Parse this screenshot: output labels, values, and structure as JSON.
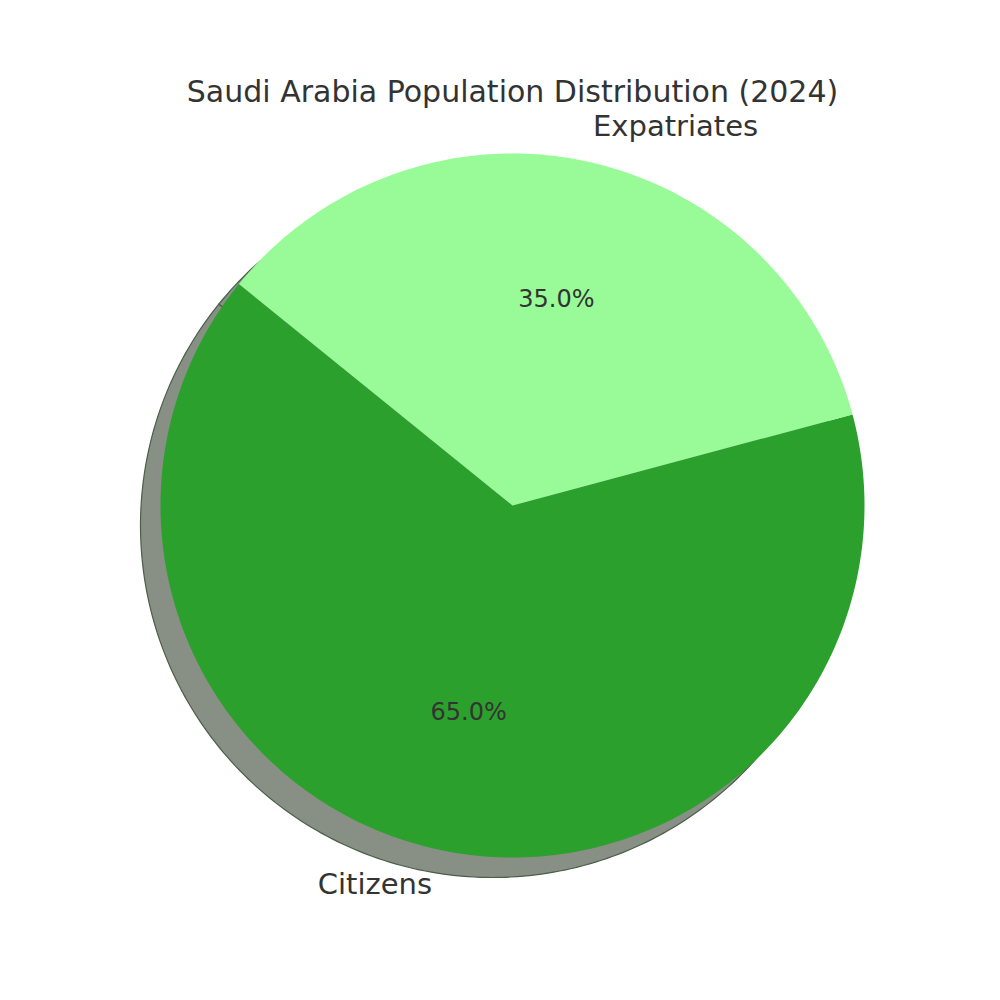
{
  "chart_data": {
    "type": "pie",
    "title": "Saudi Arabia Population Distribution (2024)",
    "categories": [
      "Citizens",
      "Expatriates"
    ],
    "values": [
      65,
      35
    ],
    "value_labels": [
      "65.0%",
      "35.0%"
    ],
    "colors": [
      "#2ca02c",
      "#98fb98"
    ],
    "data_labels": true
  }
}
